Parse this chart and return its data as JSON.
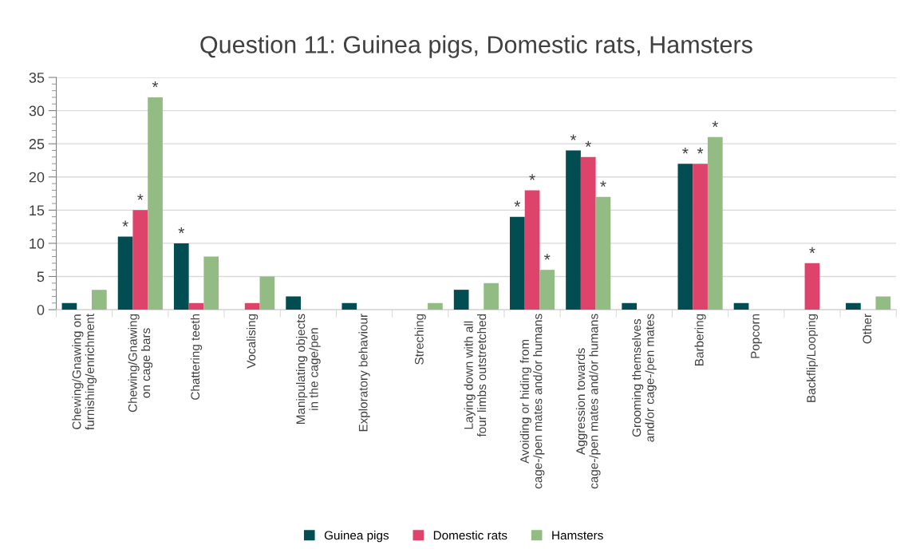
{
  "chart_data": {
    "type": "bar",
    "title": "Question 11: Guinea pigs, Domestic rats, Hamsters",
    "categories": [
      "Chewing/Gnawing on\nfurnishing/enrichment",
      "Chewing/Gnawing\non cage bars",
      "Chattering teeth",
      "Vocalising",
      "Manipulating objects\nin the cage/pen",
      "Exploratory behaviour",
      "Streching",
      "Laying down with all\nfour limbs outstretched",
      "Avoiding or hiding from\ncage-/pen mates and/or humans",
      "Aggression towards\ncage-/pen mates and/or humans",
      "Grooming themselves\nand/or cage-/pen mates",
      "Barbering",
      "Popcorn",
      "Backflip/Looping",
      "Other"
    ],
    "series": [
      {
        "name": "Guinea pigs",
        "color": "#014d52",
        "values": [
          1,
          11,
          10,
          null,
          2,
          1,
          null,
          3,
          14,
          24,
          1,
          22,
          1,
          null,
          1
        ],
        "value_labels": [
          null,
          "*",
          "*",
          null,
          null,
          null,
          null,
          null,
          "*",
          "*",
          null,
          "*",
          null,
          null,
          null
        ]
      },
      {
        "name": "Domestic rats",
        "color": "#de436b",
        "values": [
          null,
          15,
          1,
          1,
          null,
          null,
          null,
          null,
          18,
          23,
          null,
          22,
          null,
          7,
          null
        ],
        "value_labels": [
          null,
          "*",
          null,
          null,
          null,
          null,
          null,
          null,
          "*",
          "*",
          null,
          "*",
          null,
          "*",
          null
        ]
      },
      {
        "name": "Hamsters",
        "color": "#93bb84",
        "values": [
          3,
          32,
          8,
          5,
          null,
          null,
          1,
          4,
          6,
          17,
          null,
          26,
          null,
          null,
          2
        ],
        "value_labels": [
          null,
          "*",
          null,
          null,
          null,
          null,
          null,
          null,
          "*",
          "*",
          null,
          "*",
          null,
          null,
          null
        ]
      }
    ],
    "ylim": [
      0,
      35
    ],
    "yticks": [
      0,
      5,
      10,
      15,
      20,
      25,
      30,
      35
    ],
    "grid": "y",
    "legend": "bottom"
  }
}
